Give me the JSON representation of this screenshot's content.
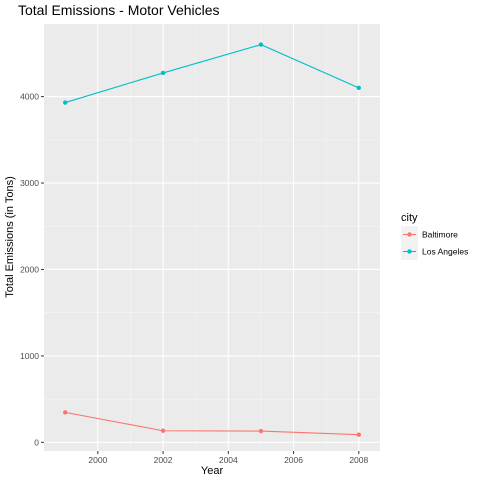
{
  "chart_data": {
    "type": "line",
    "title": "Total Emissions - Motor Vehicles",
    "xlabel": "Year",
    "ylabel": "Total Emissions (in Tons)",
    "x": [
      1999,
      2002,
      2005,
      2008
    ],
    "xlim": [
      1998.35,
      2008.65
    ],
    "ylim": [
      -100,
      4840
    ],
    "xticks": [
      2000,
      2002,
      2004,
      2006,
      2008
    ],
    "yticks": [
      0,
      1000,
      2000,
      3000,
      4000
    ],
    "grid": true,
    "legend": {
      "title": "city",
      "position": "right"
    },
    "series": [
      {
        "name": "Baltimore",
        "color": "#F8766D",
        "values": [
          346.8,
          134.3,
          130.4,
          88.3
        ]
      },
      {
        "name": "Los Angeles",
        "color": "#00BFC4",
        "values": [
          3931.1,
          4274.0,
          4601.4,
          4101.3
        ]
      }
    ]
  }
}
